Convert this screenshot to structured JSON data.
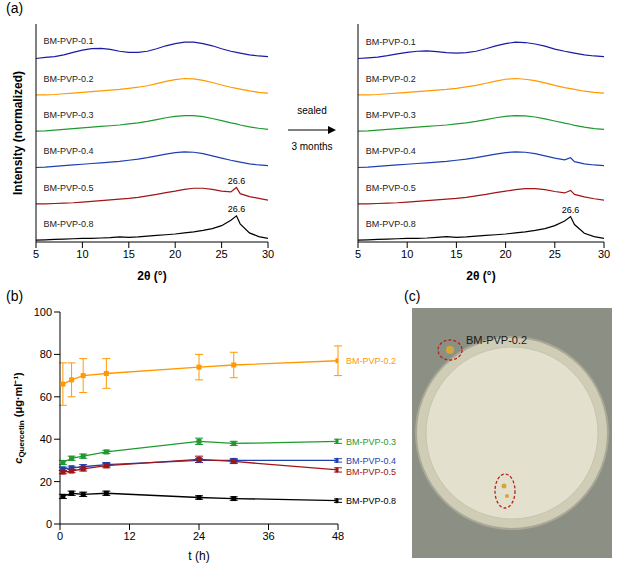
{
  "chart_data": [
    {
      "panel": "(a)",
      "type": "line",
      "x_label": "2θ (°)",
      "y_label": "Intensity (normalized)",
      "tick_labels": "x",
      "x": [
        5,
        6,
        7,
        8,
        9,
        10,
        11,
        12,
        13,
        14,
        15,
        16,
        17,
        18,
        19,
        20,
        21,
        22,
        23,
        24,
        25,
        26,
        26.6,
        27,
        28,
        29,
        30
      ],
      "xlim": [
        5,
        30
      ],
      "xticks": [
        5,
        10,
        15,
        20,
        25,
        30
      ],
      "ylim": [
        0,
        6
      ],
      "series": [
        {
          "name": "BM-PVP-0.1",
          "color": "#1a1aa6",
          "values": [
            5.05,
            5.08,
            5.1,
            5.15,
            5.22,
            5.28,
            5.32,
            5.33,
            5.3,
            5.25,
            5.22,
            5.22,
            5.25,
            5.32,
            5.4,
            5.46,
            5.5,
            5.5,
            5.46,
            5.4,
            5.32,
            5.25,
            5.22,
            5.2,
            5.15,
            5.12,
            5.1
          ]
        },
        {
          "name": "BM-PVP-0.2",
          "color": "#ff9900",
          "values": [
            4.05,
            4.05,
            4.06,
            4.08,
            4.1,
            4.12,
            4.14,
            4.16,
            4.18,
            4.2,
            4.23,
            4.26,
            4.3,
            4.36,
            4.42,
            4.47,
            4.5,
            4.49,
            4.45,
            4.39,
            4.32,
            4.26,
            4.23,
            4.21,
            4.16,
            4.12,
            4.1
          ]
        },
        {
          "name": "BM-PVP-0.3",
          "color": "#1f9a2e",
          "values": [
            3.05,
            3.06,
            3.08,
            3.1,
            3.12,
            3.14,
            3.16,
            3.18,
            3.2,
            3.22,
            3.25,
            3.28,
            3.32,
            3.37,
            3.42,
            3.46,
            3.48,
            3.48,
            3.45,
            3.4,
            3.34,
            3.28,
            3.25,
            3.22,
            3.17,
            3.13,
            3.1
          ]
        },
        {
          "name": "BM-PVP-0.4",
          "color": "#1f3fb0",
          "values": [
            2.05,
            2.06,
            2.08,
            2.1,
            2.12,
            2.14,
            2.16,
            2.18,
            2.2,
            2.22,
            2.25,
            2.28,
            2.32,
            2.37,
            2.42,
            2.46,
            2.48,
            2.47,
            2.43,
            2.37,
            2.31,
            2.25,
            2.22,
            2.2,
            2.15,
            2.12,
            2.1
          ]
        },
        {
          "name": "BM-PVP-0.5",
          "color": "#a01515",
          "values": [
            1.05,
            1.05,
            1.06,
            1.07,
            1.08,
            1.1,
            1.12,
            1.14,
            1.16,
            1.18,
            1.2,
            1.23,
            1.27,
            1.31,
            1.36,
            1.4,
            1.45,
            1.48,
            1.48,
            1.45,
            1.4,
            1.38,
            1.5,
            1.33,
            1.25,
            1.2,
            1.15
          ]
        },
        {
          "name": "BM-PVP-0.8",
          "color": "#000000",
          "values": [
            0.05,
            0.06,
            0.07,
            0.08,
            0.09,
            0.1,
            0.1,
            0.11,
            0.12,
            0.14,
            0.13,
            0.14,
            0.16,
            0.18,
            0.2,
            0.22,
            0.25,
            0.28,
            0.32,
            0.37,
            0.45,
            0.6,
            0.72,
            0.5,
            0.25,
            0.15,
            0.1
          ]
        }
      ],
      "annotations": [
        {
          "text": "26.6",
          "x": 26.6,
          "series": "BM-PVP-0.5"
        },
        {
          "text": "26.6",
          "x": 26.6,
          "series": "BM-PVP-0.8"
        }
      ]
    },
    {
      "type": "line",
      "x_label": "2θ (°)",
      "tick_labels": "x",
      "x": [
        5,
        6,
        7,
        8,
        9,
        10,
        11,
        12,
        13,
        14,
        15,
        16,
        17,
        18,
        19,
        20,
        21,
        22,
        23,
        24,
        25,
        26,
        26.6,
        27,
        28,
        29,
        30
      ],
      "xlim": [
        5,
        30
      ],
      "xticks": [
        5,
        10,
        15,
        20,
        25,
        30
      ],
      "ylim": [
        0,
        6
      ],
      "series": [
        {
          "name": "BM-PVP-0.1",
          "color": "#1a1aa6",
          "values": [
            5.05,
            5.07,
            5.09,
            5.13,
            5.18,
            5.22,
            5.25,
            5.26,
            5.24,
            5.21,
            5.2,
            5.21,
            5.25,
            5.32,
            5.4,
            5.46,
            5.5,
            5.49,
            5.45,
            5.39,
            5.31,
            5.25,
            5.22,
            5.2,
            5.15,
            5.12,
            5.1
          ]
        },
        {
          "name": "BM-PVP-0.2",
          "color": "#ff9900",
          "values": [
            4.05,
            4.05,
            4.06,
            4.08,
            4.1,
            4.12,
            4.14,
            4.16,
            4.18,
            4.2,
            4.23,
            4.27,
            4.31,
            4.37,
            4.43,
            4.48,
            4.5,
            4.48,
            4.44,
            4.38,
            4.31,
            4.25,
            4.22,
            4.2,
            4.15,
            4.12,
            4.1
          ]
        },
        {
          "name": "BM-PVP-0.3",
          "color": "#1f9a2e",
          "values": [
            3.05,
            3.06,
            3.08,
            3.1,
            3.12,
            3.14,
            3.16,
            3.18,
            3.2,
            3.22,
            3.25,
            3.28,
            3.32,
            3.37,
            3.42,
            3.46,
            3.48,
            3.47,
            3.44,
            3.39,
            3.33,
            3.27,
            3.24,
            3.21,
            3.16,
            3.12,
            3.1
          ]
        },
        {
          "name": "BM-PVP-0.4",
          "color": "#1f3fb0",
          "values": [
            2.05,
            2.06,
            2.08,
            2.1,
            2.12,
            2.14,
            2.16,
            2.18,
            2.2,
            2.22,
            2.25,
            2.28,
            2.32,
            2.37,
            2.42,
            2.46,
            2.48,
            2.47,
            2.43,
            2.37,
            2.31,
            2.26,
            2.32,
            2.21,
            2.15,
            2.12,
            2.1
          ]
        },
        {
          "name": "BM-PVP-0.5",
          "color": "#a01515",
          "values": [
            1.05,
            1.05,
            1.06,
            1.07,
            1.08,
            1.1,
            1.12,
            1.14,
            1.16,
            1.18,
            1.2,
            1.23,
            1.27,
            1.31,
            1.36,
            1.4,
            1.44,
            1.47,
            1.47,
            1.44,
            1.39,
            1.35,
            1.42,
            1.31,
            1.24,
            1.19,
            1.15
          ]
        },
        {
          "name": "BM-PVP-0.8",
          "color": "#000000",
          "values": [
            0.05,
            0.06,
            0.07,
            0.08,
            0.09,
            0.1,
            0.1,
            0.11,
            0.13,
            0.15,
            0.13,
            0.14,
            0.16,
            0.18,
            0.2,
            0.22,
            0.25,
            0.28,
            0.32,
            0.37,
            0.45,
            0.58,
            0.7,
            0.48,
            0.24,
            0.15,
            0.1
          ]
        }
      ],
      "annotations": [
        {
          "text": "26.6",
          "x": 26.6,
          "series": "BM-PVP-0.8"
        }
      ]
    },
    {
      "panel": "(b)",
      "type": "line",
      "x_label": "t (h)",
      "y_label": {
        "symbol": "c",
        "subscript": "Quercetin",
        "unit": "(μg·ml⁻¹)"
      },
      "marker": "square",
      "x": [
        0.5,
        2,
        4,
        8,
        24,
        30,
        48
      ],
      "xlim": [
        0,
        48
      ],
      "xticks": [
        0,
        12,
        24,
        36,
        48
      ],
      "ylim": [
        0,
        100
      ],
      "yticks": [
        0,
        20,
        40,
        60,
        80,
        100
      ],
      "series": [
        {
          "name": "BM-PVP-0.2",
          "color": "#ff9900",
          "values": [
            66,
            68,
            70,
            71,
            74,
            75,
            77
          ],
          "errors": [
            10,
            8,
            8,
            7,
            6,
            6,
            7
          ]
        },
        {
          "name": "BM-PVP-0.3",
          "color": "#1f9a2e",
          "values": [
            29,
            31,
            32,
            34,
            39,
            38,
            39
          ],
          "errors": [
            1,
            1,
            1,
            0.8,
            1.5,
            1,
            1
          ]
        },
        {
          "name": "BM-PVP-0.4",
          "color": "#1f3fb0",
          "values": [
            26,
            26.5,
            27,
            28,
            30,
            30,
            30
          ],
          "errors": [
            0.8,
            0.8,
            1,
            1,
            1,
            0.8,
            0.8
          ]
        },
        {
          "name": "BM-PVP-0.5",
          "color": "#a01515",
          "values": [
            24.5,
            25,
            26,
            27.5,
            30.5,
            29.5,
            25.5
          ],
          "errors": [
            0.8,
            0.8,
            1,
            1,
            1.5,
            1,
            1
          ]
        },
        {
          "name": "BM-PVP-0.8",
          "color": "#000000",
          "values": [
            13,
            14.5,
            14,
            14.5,
            12.5,
            12,
            11
          ],
          "errors": [
            1,
            1,
            1,
            1,
            0.8,
            0.8,
            0.8
          ]
        }
      ]
    }
  ],
  "arrow": {
    "above": "sealed",
    "below": "3 months"
  },
  "photo": {
    "panel": "(c)",
    "label": "BM-PVP-0.2"
  }
}
